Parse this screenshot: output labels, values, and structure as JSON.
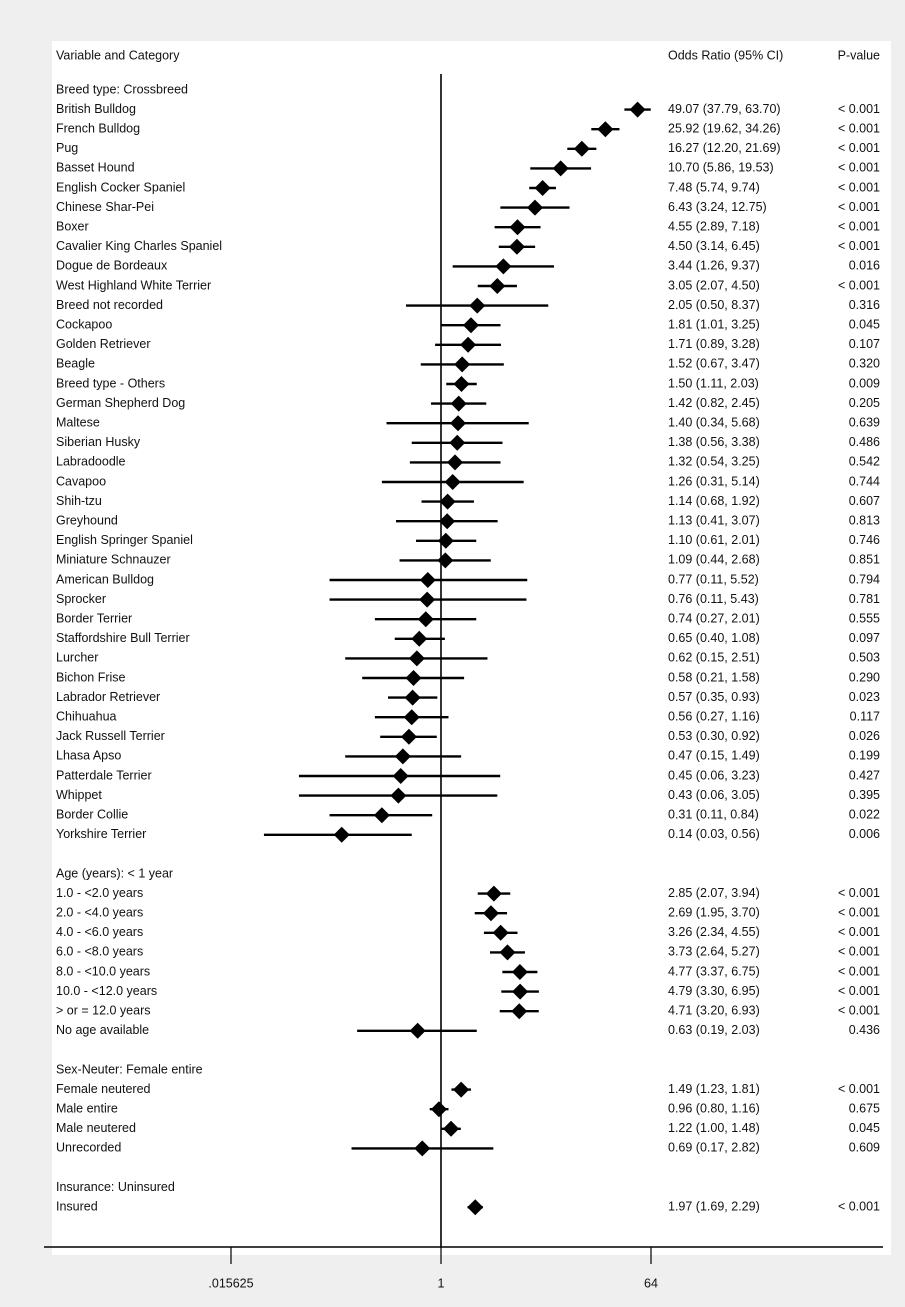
{
  "chart_data": {
    "type": "forest",
    "x_scale": "log2",
    "reference_line": 1,
    "x_ticks": [
      {
        "value": 0.015625,
        "label": ".015625"
      },
      {
        "value": 1,
        "label": "1"
      },
      {
        "value": 64,
        "label": "64"
      }
    ],
    "columns": {
      "variable": "Variable and Category",
      "or": "Odds Ratio (95% CI)",
      "p": "P-value"
    },
    "groups": [
      {
        "header": "Breed type: Crossbreed",
        "rows": [
          {
            "label": "British Bulldog",
            "or": 49.07,
            "lo": 37.79,
            "hi": 63.7,
            "ci_text": "49.07 (37.79, 63.70)",
            "p": "< 0.001"
          },
          {
            "label": "French Bulldog",
            "or": 25.92,
            "lo": 19.62,
            "hi": 34.26,
            "ci_text": "25.92 (19.62, 34.26)",
            "p": "< 0.001"
          },
          {
            "label": "Pug",
            "or": 16.27,
            "lo": 12.2,
            "hi": 21.69,
            "ci_text": "16.27 (12.20, 21.69)",
            "p": "< 0.001"
          },
          {
            "label": "Basset Hound",
            "or": 10.7,
            "lo": 5.86,
            "hi": 19.53,
            "ci_text": "10.70 (5.86, 19.53)",
            "p": "< 0.001"
          },
          {
            "label": "English Cocker Spaniel",
            "or": 7.48,
            "lo": 5.74,
            "hi": 9.74,
            "ci_text": "7.48 (5.74, 9.74)",
            "p": "< 0.001"
          },
          {
            "label": "Chinese Shar-Pei",
            "or": 6.43,
            "lo": 3.24,
            "hi": 12.75,
            "ci_text": "6.43 (3.24, 12.75)",
            "p": "< 0.001"
          },
          {
            "label": "Boxer",
            "or": 4.55,
            "lo": 2.89,
            "hi": 7.18,
            "ci_text": "4.55 (2.89, 7.18)",
            "p": "< 0.001"
          },
          {
            "label": "Cavalier King Charles Spaniel",
            "or": 4.5,
            "lo": 3.14,
            "hi": 6.45,
            "ci_text": "4.50 (3.14, 6.45)",
            "p": "< 0.001"
          },
          {
            "label": "Dogue de Bordeaux",
            "or": 3.44,
            "lo": 1.26,
            "hi": 9.37,
            "ci_text": "3.44 (1.26, 9.37)",
            "p": "0.016"
          },
          {
            "label": "West Highland White Terrier",
            "or": 3.05,
            "lo": 2.07,
            "hi": 4.5,
            "ci_text": "3.05 (2.07, 4.50)",
            "p": "< 0.001"
          },
          {
            "label": "Breed not recorded",
            "or": 2.05,
            "lo": 0.5,
            "hi": 8.37,
            "ci_text": "2.05 (0.50, 8.37)",
            "p": "0.316"
          },
          {
            "label": "Cockapoo",
            "or": 1.81,
            "lo": 1.01,
            "hi": 3.25,
            "ci_text": "1.81 (1.01, 3.25)",
            "p": "0.045"
          },
          {
            "label": "Golden Retriever",
            "or": 1.71,
            "lo": 0.89,
            "hi": 3.28,
            "ci_text": "1.71 (0.89, 3.28)",
            "p": "0.107"
          },
          {
            "label": "Beagle",
            "or": 1.52,
            "lo": 0.67,
            "hi": 3.47,
            "ci_text": "1.52 (0.67, 3.47)",
            "p": "0.320"
          },
          {
            "label": "Breed type - Others",
            "or": 1.5,
            "lo": 1.11,
            "hi": 2.03,
            "ci_text": "1.50 (1.11, 2.03)",
            "p": "0.009"
          },
          {
            "label": "German Shepherd Dog",
            "or": 1.42,
            "lo": 0.82,
            "hi": 2.45,
            "ci_text": "1.42 (0.82, 2.45)",
            "p": "0.205"
          },
          {
            "label": "Maltese",
            "or": 1.4,
            "lo": 0.34,
            "hi": 5.68,
            "ci_text": "1.40 (0.34, 5.68)",
            "p": "0.639"
          },
          {
            "label": "Siberian Husky",
            "or": 1.38,
            "lo": 0.56,
            "hi": 3.38,
            "ci_text": "1.38 (0.56, 3.38)",
            "p": "0.486"
          },
          {
            "label": "Labradoodle",
            "or": 1.32,
            "lo": 0.54,
            "hi": 3.25,
            "ci_text": "1.32 (0.54, 3.25)",
            "p": "0.542"
          },
          {
            "label": "Cavapoo",
            "or": 1.26,
            "lo": 0.31,
            "hi": 5.14,
            "ci_text": "1.26 (0.31, 5.14)",
            "p": "0.744"
          },
          {
            "label": "Shih-tzu",
            "or": 1.14,
            "lo": 0.68,
            "hi": 1.92,
            "ci_text": "1.14 (0.68, 1.92)",
            "p": "0.607"
          },
          {
            "label": "Greyhound",
            "or": 1.13,
            "lo": 0.41,
            "hi": 3.07,
            "ci_text": "1.13 (0.41, 3.07)",
            "p": "0.813"
          },
          {
            "label": "English Springer Spaniel",
            "or": 1.1,
            "lo": 0.61,
            "hi": 2.01,
            "ci_text": "1.10 (0.61, 2.01)",
            "p": "0.746"
          },
          {
            "label": "Miniature Schnauzer",
            "or": 1.09,
            "lo": 0.44,
            "hi": 2.68,
            "ci_text": "1.09 (0.44, 2.68)",
            "p": "0.851"
          },
          {
            "label": "American Bulldog",
            "or": 0.77,
            "lo": 0.11,
            "hi": 5.52,
            "ci_text": "0.77 (0.11, 5.52)",
            "p": "0.794"
          },
          {
            "label": "Sprocker",
            "or": 0.76,
            "lo": 0.11,
            "hi": 5.43,
            "ci_text": "0.76 (0.11, 5.43)",
            "p": "0.781"
          },
          {
            "label": "Border Terrier",
            "or": 0.74,
            "lo": 0.27,
            "hi": 2.01,
            "ci_text": "0.74 (0.27, 2.01)",
            "p": "0.555"
          },
          {
            "label": "Staffordshire Bull Terrier",
            "or": 0.65,
            "lo": 0.4,
            "hi": 1.08,
            "ci_text": "0.65 (0.40, 1.08)",
            "p": "0.097"
          },
          {
            "label": "Lurcher",
            "or": 0.62,
            "lo": 0.15,
            "hi": 2.51,
            "ci_text": "0.62 (0.15, 2.51)",
            "p": "0.503"
          },
          {
            "label": "Bichon Frise",
            "or": 0.58,
            "lo": 0.21,
            "hi": 1.58,
            "ci_text": "0.58 (0.21, 1.58)",
            "p": "0.290"
          },
          {
            "label": "Labrador Retriever",
            "or": 0.57,
            "lo": 0.35,
            "hi": 0.93,
            "ci_text": "0.57 (0.35, 0.93)",
            "p": "0.023"
          },
          {
            "label": "Chihuahua",
            "or": 0.56,
            "lo": 0.27,
            "hi": 1.16,
            "ci_text": "0.56 (0.27, 1.16)",
            "p": "0.117"
          },
          {
            "label": "Jack Russell Terrier",
            "or": 0.53,
            "lo": 0.3,
            "hi": 0.92,
            "ci_text": "0.53 (0.30, 0.92)",
            "p": "0.026"
          },
          {
            "label": "Lhasa Apso",
            "or": 0.47,
            "lo": 0.15,
            "hi": 1.49,
            "ci_text": "0.47 (0.15, 1.49)",
            "p": "0.199"
          },
          {
            "label": "Patterdale Terrier",
            "or": 0.45,
            "lo": 0.06,
            "hi": 3.23,
            "ci_text": "0.45 (0.06, 3.23)",
            "p": "0.427"
          },
          {
            "label": "Whippet",
            "or": 0.43,
            "lo": 0.06,
            "hi": 3.05,
            "ci_text": "0.43 (0.06, 3.05)",
            "p": "0.395"
          },
          {
            "label": "Border Collie",
            "or": 0.31,
            "lo": 0.11,
            "hi": 0.84,
            "ci_text": "0.31 (0.11, 0.84)",
            "p": "0.022"
          },
          {
            "label": "Yorkshire Terrier",
            "or": 0.14,
            "lo": 0.03,
            "hi": 0.56,
            "ci_text": "0.14 (0.03, 0.56)",
            "p": "0.006"
          }
        ]
      },
      {
        "header": "Age (years): < 1 year",
        "rows": [
          {
            "label": "1.0 - <2.0 years",
            "or": 2.85,
            "lo": 2.07,
            "hi": 3.94,
            "ci_text": "2.85 (2.07, 3.94)",
            "p": "< 0.001"
          },
          {
            "label": "2.0 - <4.0 years",
            "or": 2.69,
            "lo": 1.95,
            "hi": 3.7,
            "ci_text": "2.69 (1.95, 3.70)",
            "p": "< 0.001"
          },
          {
            "label": "4.0 - <6.0 years",
            "or": 3.26,
            "lo": 2.34,
            "hi": 4.55,
            "ci_text": "3.26 (2.34, 4.55)",
            "p": "< 0.001"
          },
          {
            "label": "6.0 - <8.0 years",
            "or": 3.73,
            "lo": 2.64,
            "hi": 5.27,
            "ci_text": "3.73 (2.64, 5.27)",
            "p": "< 0.001"
          },
          {
            "label": "8.0 - <10.0 years",
            "or": 4.77,
            "lo": 3.37,
            "hi": 6.75,
            "ci_text": "4.77 (3.37, 6.75)",
            "p": "< 0.001"
          },
          {
            "label": "10.0 - <12.0 years",
            "or": 4.79,
            "lo": 3.3,
            "hi": 6.95,
            "ci_text": "4.79 (3.30, 6.95)",
            "p": "< 0.001"
          },
          {
            "label": "> or = 12.0 years",
            "or": 4.71,
            "lo": 3.2,
            "hi": 6.93,
            "ci_text": "4.71 (3.20, 6.93)",
            "p": "< 0.001"
          },
          {
            "label": "No age available",
            "or": 0.63,
            "lo": 0.19,
            "hi": 2.03,
            "ci_text": "0.63 (0.19, 2.03)",
            "p": "0.436"
          }
        ]
      },
      {
        "header": "Sex-Neuter: Female entire",
        "rows": [
          {
            "label": "Female neutered",
            "or": 1.49,
            "lo": 1.23,
            "hi": 1.81,
            "ci_text": "1.49 (1.23, 1.81)",
            "p": "< 0.001"
          },
          {
            "label": "Male entire",
            "or": 0.96,
            "lo": 0.8,
            "hi": 1.16,
            "ci_text": "0.96 (0.80, 1.16)",
            "p": "0.675"
          },
          {
            "label": "Male neutered",
            "or": 1.22,
            "lo": 1.0,
            "hi": 1.48,
            "ci_text": "1.22 (1.00, 1.48)",
            "p": "0.045"
          },
          {
            "label": "Unrecorded",
            "or": 0.69,
            "lo": 0.17,
            "hi": 2.82,
            "ci_text": "0.69 (0.17, 2.82)",
            "p": "0.609"
          }
        ]
      },
      {
        "header": "Insurance: Uninsured",
        "rows": [
          {
            "label": "Insured",
            "or": 1.97,
            "lo": 1.69,
            "hi": 2.29,
            "ci_text": "1.97 (1.69, 2.29)",
            "p": "< 0.001"
          }
        ]
      }
    ]
  }
}
